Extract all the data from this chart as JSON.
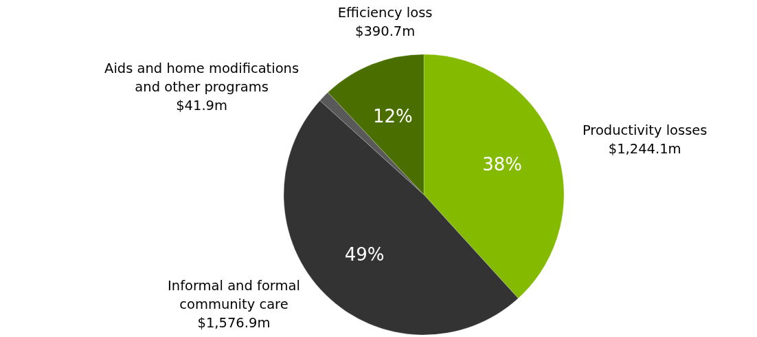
{
  "chart_data": {
    "type": "pie",
    "categories": [
      "Productivity losses",
      "Informal and formal community care",
      "Aids and home modifications and other programs",
      "Efficiency loss"
    ],
    "values": [
      1244.1,
      1576.9,
      41.9,
      390.7
    ],
    "colors": [
      "#84bb00",
      "#333333",
      "#595959",
      "#4a6e00"
    ],
    "value_labels": [
      "$1,244.1m",
      "$1,576.9m",
      "$41.9m",
      "$390.7m"
    ],
    "annotations": [
      {
        "text": "38%",
        "x": "Productivity losses"
      },
      {
        "text": "49%",
        "x": "Informal and formal community care"
      },
      {
        "text": "12%",
        "x": "Efficiency loss"
      }
    ]
  }
}
